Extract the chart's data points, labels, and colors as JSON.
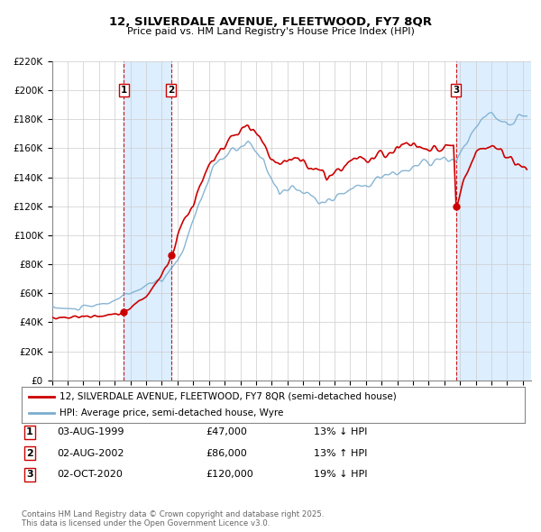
{
  "title": "12, SILVERDALE AVENUE, FLEETWOOD, FY7 8QR",
  "subtitle": "Price paid vs. HM Land Registry's House Price Index (HPI)",
  "background_color": "#ffffff",
  "plot_bg_color": "#ffffff",
  "grid_color": "#cccccc",
  "xmin": 1995.0,
  "xmax": 2025.5,
  "ymin": 0,
  "ymax": 220000,
  "ytick_step": 20000,
  "legend_line1": "12, SILVERDALE AVENUE, FLEETWOOD, FY7 8QR (semi-detached house)",
  "legend_line2": "HPI: Average price, semi-detached house, Wyre",
  "red_color": "#cc0000",
  "blue_color": "#7aadcf",
  "transactions": [
    {
      "num": 1,
      "date": "03-AUG-1999",
      "price": 47000,
      "pct": "13%",
      "dir": "↓",
      "x": 1999.583
    },
    {
      "num": 2,
      "date": "02-AUG-2002",
      "price": 86000,
      "pct": "13%",
      "dir": "↑",
      "x": 2002.583
    },
    {
      "num": 3,
      "date": "02-OCT-2020",
      "price": 120000,
      "pct": "19%",
      "dir": "↓",
      "x": 2020.75
    }
  ],
  "footer": "Contains HM Land Registry data © Crown copyright and database right 2025.\nThis data is licensed under the Open Government Licence v3.0.",
  "shade_color": "#ddeeff"
}
